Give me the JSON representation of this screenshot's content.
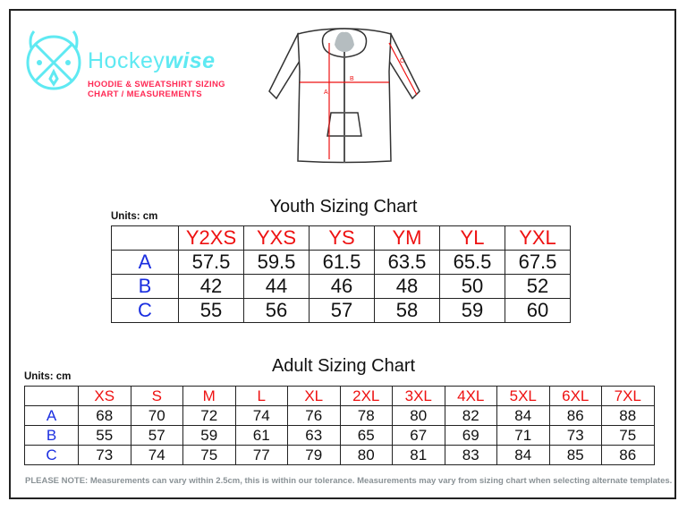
{
  "brand": {
    "name_light": "Hockey",
    "name_bold": "wise",
    "subtitle_line1": "HOODIE & SWEATSHIRT SIZING",
    "subtitle_line2": "CHART / MEASUREMENTS",
    "color_logo": "#5fe9f2",
    "color_subtitle": "#ff2a55"
  },
  "diagram": {
    "labels": [
      "A",
      "B",
      "C"
    ]
  },
  "youth": {
    "title": "Youth Sizing Chart",
    "units": "Units: cm",
    "sizes": [
      "Y2XS",
      "YXS",
      "YS",
      "YM",
      "YL",
      "YXL"
    ],
    "rows": [
      {
        "label": "A",
        "values": [
          "57.5",
          "59.5",
          "61.5",
          "63.5",
          "65.5",
          "67.5"
        ]
      },
      {
        "label": "B",
        "values": [
          "42",
          "44",
          "46",
          "48",
          "50",
          "52"
        ]
      },
      {
        "label": "C",
        "values": [
          "55",
          "56",
          "57",
          "58",
          "59",
          "60"
        ]
      }
    ]
  },
  "adult": {
    "title": "Adult Sizing Chart",
    "units": "Units: cm",
    "sizes": [
      "XS",
      "S",
      "M",
      "L",
      "XL",
      "2XL",
      "3XL",
      "4XL",
      "5XL",
      "6XL",
      "7XL"
    ],
    "rows": [
      {
        "label": "A",
        "values": [
          "68",
          "70",
          "72",
          "74",
          "76",
          "78",
          "80",
          "82",
          "84",
          "86",
          "88"
        ]
      },
      {
        "label": "B",
        "values": [
          "55",
          "57",
          "59",
          "61",
          "63",
          "65",
          "67",
          "69",
          "71",
          "73",
          "75"
        ]
      },
      {
        "label": "C",
        "values": [
          "73",
          "74",
          "75",
          "77",
          "79",
          "80",
          "81",
          "83",
          "84",
          "85",
          "86"
        ]
      }
    ]
  },
  "note": "PLEASE NOTE:  Measurements can vary within 2.5cm, this is within our tolerance. Measurements may vary from sizing chart when selecting alternate templates."
}
